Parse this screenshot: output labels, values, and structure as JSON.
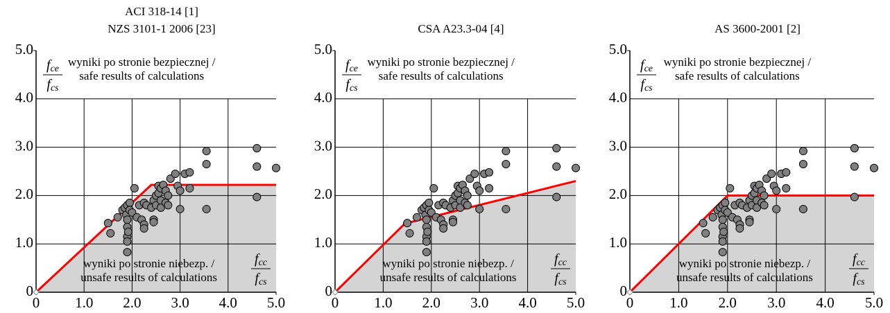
{
  "chart_data": [
    {
      "type": "scatter",
      "title": "ACI 318-14 [1]",
      "subtitle": "NZS 3101-1 2006 [23]",
      "xlim": [
        0,
        5
      ],
      "ylim": [
        0,
        5
      ],
      "xticks": [
        0,
        {
          "value": 1,
          "label": "1.0"
        },
        {
          "value": 2,
          "label": "2.0"
        },
        {
          "value": 3,
          "label": "3.0"
        },
        {
          "value": 4,
          "label": "4.0"
        },
        {
          "value": 5,
          "label": "5.0"
        }
      ],
      "yticks": [
        0,
        {
          "value": 1,
          "label": "1.0"
        },
        {
          "value": 2,
          "label": "2.0"
        },
        {
          "value": 3,
          "label": "3.0"
        },
        {
          "value": 4,
          "label": "4.0"
        },
        {
          "value": 5,
          "label": "5.0"
        }
      ],
      "ylabel": {
        "num": "f",
        "num_sub": "ce",
        "den": "f",
        "den_sub": "cs"
      },
      "xlabel": {
        "num": "f",
        "num_sub": "cc",
        "den": "f",
        "den_sub": "cs"
      },
      "annotations": {
        "safe": [
          "wyniki po stronie bezpiecznej /",
          "safe results of calculations"
        ],
        "unsafe": [
          "wyniki po stronie niebezp. /",
          "unsafe results of calculations"
        ]
      },
      "points": {
        "color": "#808080",
        "x": [
          1.5,
          1.55,
          1.7,
          1.8,
          1.85,
          1.9,
          1.88,
          1.9,
          1.9,
          1.9,
          1.9,
          1.9,
          1.92,
          1.95,
          1.95,
          2.0,
          2.05,
          2.1,
          2.15,
          2.2,
          2.25,
          2.25,
          2.25,
          2.3,
          2.4,
          2.45,
          2.45,
          2.45,
          2.5,
          2.5,
          2.55,
          2.55,
          2.6,
          2.6,
          2.6,
          2.65,
          2.7,
          2.7,
          2.75,
          2.75,
          2.8,
          2.9,
          2.95,
          3.0,
          3.0,
          3.1,
          3.2,
          3.2,
          3.55,
          3.55,
          3.55,
          4.6,
          4.6,
          4.6,
          5.0
        ],
        "values": [
          1.43,
          1.22,
          1.55,
          1.7,
          1.75,
          1.8,
          1.6,
          1.5,
          1.35,
          1.15,
          1.05,
          0.83,
          1.25,
          1.85,
          1.7,
          1.65,
          2.15,
          1.55,
          1.8,
          1.5,
          1.85,
          1.4,
          1.32,
          1.8,
          1.75,
          1.9,
          1.5,
          1.45,
          2.0,
          1.8,
          2.2,
          2.05,
          2.15,
          1.9,
          1.75,
          2.22,
          2.1,
          1.85,
          2.0,
          1.8,
          2.35,
          2.45,
          2.2,
          2.1,
          1.72,
          2.45,
          2.48,
          2.15,
          2.92,
          2.65,
          1.72,
          2.98,
          2.6,
          1.97,
          2.57
        ]
      },
      "limit_line": {
        "color": "#ff0000",
        "x": [
          0,
          2.4,
          5
        ],
        "values": [
          0,
          2.22,
          2.22
        ]
      }
    },
    {
      "type": "scatter",
      "title": "CSA A23.3-04 [4]",
      "xlim": [
        0,
        5
      ],
      "ylim": [
        0,
        5
      ],
      "xticks": [
        0,
        {
          "value": 1,
          "label": "1.0"
        },
        {
          "value": 2,
          "label": "2.0"
        },
        {
          "value": 3,
          "label": "3.0"
        },
        {
          "value": 4,
          "label": "4.0"
        },
        {
          "value": 5,
          "label": "5.0"
        }
      ],
      "yticks": [
        0,
        {
          "value": 1,
          "label": "1.0"
        },
        {
          "value": 2,
          "label": "2.0"
        },
        {
          "value": 3,
          "label": "3.0"
        },
        {
          "value": 4,
          "label": "4.0"
        },
        {
          "value": 5,
          "label": "5.0"
        }
      ],
      "ylabel": {
        "num": "f",
        "num_sub": "ce",
        "den": "f",
        "den_sub": "cs"
      },
      "xlabel": {
        "num": "f",
        "num_sub": "cc",
        "den": "f",
        "den_sub": "cs"
      },
      "annotations": {
        "safe": [
          "wyniki po stronie bezpiecznej /",
          "safe results of calculations"
        ],
        "unsafe": [
          "wyniki po stronie niebezp. /",
          "unsafe results of calculations"
        ]
      },
      "points": {
        "color": "#808080",
        "x": [
          1.5,
          1.55,
          1.7,
          1.8,
          1.85,
          1.9,
          1.88,
          1.9,
          1.9,
          1.9,
          1.9,
          1.9,
          1.92,
          1.95,
          1.95,
          2.0,
          2.05,
          2.1,
          2.15,
          2.2,
          2.25,
          2.25,
          2.25,
          2.3,
          2.4,
          2.45,
          2.45,
          2.45,
          2.5,
          2.5,
          2.55,
          2.55,
          2.6,
          2.6,
          2.6,
          2.65,
          2.7,
          2.7,
          2.75,
          2.75,
          2.8,
          2.9,
          2.95,
          3.0,
          3.0,
          3.1,
          3.2,
          3.2,
          3.55,
          3.55,
          3.55,
          4.6,
          4.6,
          4.6,
          5.0
        ],
        "values": [
          1.43,
          1.22,
          1.55,
          1.7,
          1.75,
          1.8,
          1.6,
          1.5,
          1.35,
          1.15,
          1.05,
          0.83,
          1.25,
          1.85,
          1.7,
          1.65,
          2.15,
          1.55,
          1.8,
          1.5,
          1.85,
          1.4,
          1.32,
          1.8,
          1.75,
          1.9,
          1.5,
          1.45,
          2.0,
          1.8,
          2.2,
          2.05,
          2.15,
          1.9,
          1.75,
          2.22,
          2.1,
          1.85,
          2.0,
          1.8,
          2.35,
          2.45,
          2.2,
          2.1,
          1.72,
          2.45,
          2.48,
          2.15,
          2.92,
          2.65,
          1.72,
          2.98,
          2.6,
          1.97,
          2.57
        ]
      },
      "limit_line": {
        "color": "#ff0000",
        "x": [
          0,
          1.45,
          5
        ],
        "values": [
          0,
          1.42,
          2.3
        ]
      }
    },
    {
      "type": "scatter",
      "title": "AS 3600-2001 [2]",
      "xlim": [
        0,
        5
      ],
      "ylim": [
        0,
        5
      ],
      "xticks": [
        0,
        {
          "value": 1,
          "label": "1.0"
        },
        {
          "value": 2,
          "label": "2.0"
        },
        {
          "value": 3,
          "label": "3.0"
        },
        {
          "value": 4,
          "label": "4.0"
        },
        {
          "value": 5,
          "label": "5.0"
        }
      ],
      "yticks": [
        0,
        {
          "value": 1,
          "label": "1.0"
        },
        {
          "value": 2,
          "label": "2.0"
        },
        {
          "value": 3,
          "label": "3.0"
        },
        {
          "value": 4,
          "label": "4.0"
        },
        {
          "value": 5,
          "label": "5.0"
        }
      ],
      "ylabel": {
        "num": "f",
        "num_sub": "ce",
        "den": "f",
        "den_sub": "cs"
      },
      "xlabel": {
        "num": "f",
        "num_sub": "cc",
        "den": "f",
        "den_sub": "cs"
      },
      "annotations": {
        "safe": [
          "wyniki po stronie bezpiecznej /",
          "safe results of calculations"
        ],
        "unsafe": [
          "wyniki po stronie niebezp. /",
          "unsafe results of calculations"
        ]
      },
      "points": {
        "color": "#808080",
        "x": [
          1.5,
          1.55,
          1.7,
          1.8,
          1.85,
          1.9,
          1.88,
          1.9,
          1.9,
          1.9,
          1.9,
          1.9,
          1.92,
          1.95,
          1.95,
          2.0,
          2.05,
          2.1,
          2.15,
          2.2,
          2.25,
          2.25,
          2.25,
          2.3,
          2.4,
          2.45,
          2.45,
          2.45,
          2.5,
          2.5,
          2.55,
          2.55,
          2.6,
          2.6,
          2.6,
          2.65,
          2.7,
          2.7,
          2.75,
          2.75,
          2.8,
          2.9,
          2.95,
          3.0,
          3.0,
          3.1,
          3.2,
          3.2,
          3.55,
          3.55,
          3.55,
          4.6,
          4.6,
          4.6,
          5.0
        ],
        "values": [
          1.43,
          1.22,
          1.55,
          1.7,
          1.75,
          1.8,
          1.6,
          1.5,
          1.35,
          1.15,
          1.05,
          0.83,
          1.25,
          1.85,
          1.7,
          1.65,
          2.15,
          1.55,
          1.8,
          1.5,
          1.85,
          1.4,
          1.32,
          1.8,
          1.75,
          1.9,
          1.5,
          1.45,
          2.0,
          1.8,
          2.2,
          2.05,
          2.15,
          1.9,
          1.75,
          2.22,
          2.1,
          1.85,
          2.0,
          1.8,
          2.35,
          2.45,
          2.2,
          2.1,
          1.72,
          2.45,
          2.48,
          2.15,
          2.92,
          2.65,
          1.72,
          2.98,
          2.6,
          1.97,
          2.57
        ]
      },
      "limit_line": {
        "color": "#ff0000",
        "x": [
          0,
          2,
          5
        ],
        "values": [
          0,
          2,
          2
        ]
      }
    }
  ]
}
